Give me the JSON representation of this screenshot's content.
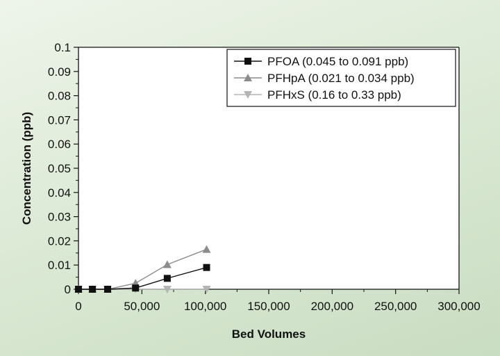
{
  "chart_data": {
    "type": "line",
    "xlabel": "Bed Volumes",
    "ylabel": "Concentration (ppb)",
    "xlim": [
      0,
      300000
    ],
    "ylim": [
      0,
      0.1
    ],
    "x_ticks": [
      0,
      50000,
      100000,
      150000,
      200000,
      250000,
      300000
    ],
    "x_tick_labels": [
      "0",
      "50,000",
      "100,000",
      "150,000",
      "200,000",
      "250,000",
      "300,000"
    ],
    "y_ticks": [
      0,
      0.01,
      0.02,
      0.03,
      0.04,
      0.05,
      0.06,
      0.07,
      0.08,
      0.09,
      0.1
    ],
    "y_tick_labels": [
      "0",
      "0.01",
      "0.02",
      "0.03",
      "0.04",
      "0.05",
      "0.06",
      "0.07",
      "0.08",
      "0.09",
      "0.1"
    ],
    "grid": false,
    "legend_position": "top-right",
    "series": [
      {
        "name": "PFOA (0.045 to 0.091 ppb)",
        "marker": "square",
        "color": "#111111",
        "x": [
          0,
          11000,
          23000,
          45000,
          70000,
          101000
        ],
        "y": [
          0,
          0,
          0,
          0.0005,
          0.0045,
          0.009
        ]
      },
      {
        "name": "PFHpA (0.021 to 0.034 ppb)",
        "marker": "triangle-up",
        "color": "#8c8c8c",
        "x": [
          0,
          11000,
          23000,
          45000,
          70000,
          101000
        ],
        "y": [
          0,
          0,
          0,
          0.0025,
          0.0102,
          0.0165
        ]
      },
      {
        "name": "PFHxS (0.16 to 0.33 ppb)",
        "marker": "triangle-down",
        "color": "#b4b4b4",
        "x": [
          0,
          11000,
          23000,
          45000,
          70000,
          101000
        ],
        "y": [
          0,
          0,
          0,
          0,
          0,
          0
        ]
      }
    ]
  }
}
